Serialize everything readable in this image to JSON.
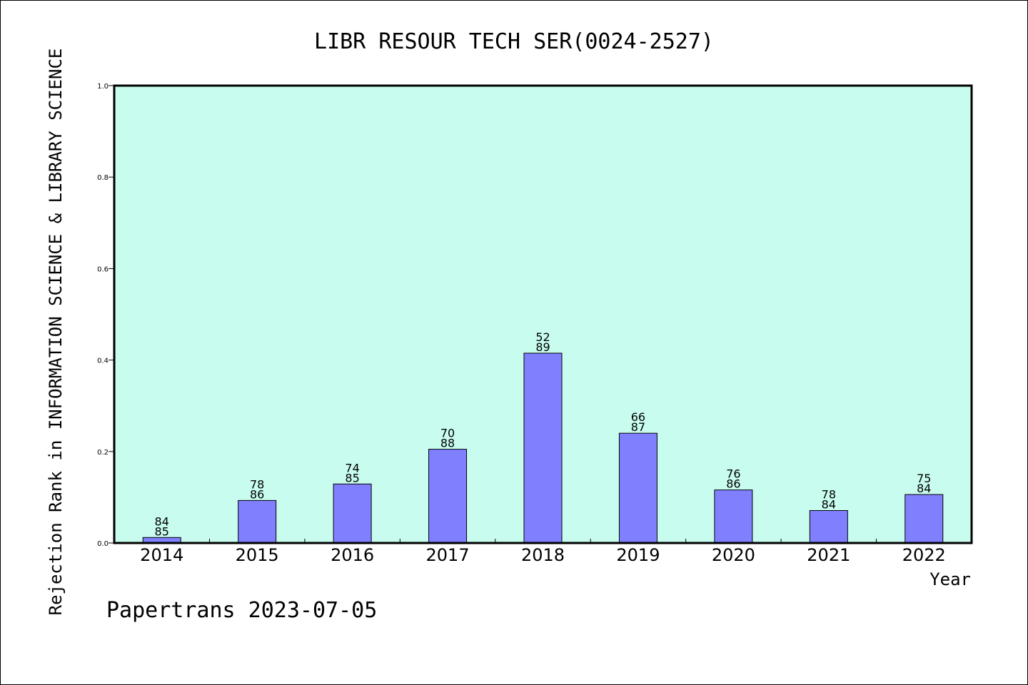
{
  "chart_data": {
    "type": "bar",
    "title": "LIBR RESOUR TECH SER(0024-2527)",
    "xlabel": "Year",
    "ylabel": "Rejection Rank in INFORMATION SCIENCE & LIBRARY SCIENCE",
    "ylim": [
      0.0,
      1.0
    ],
    "yticks": [
      "0.0",
      "0.2",
      "0.4",
      "0.6",
      "0.8",
      "1.0"
    ],
    "categories": [
      "2014",
      "2015",
      "2016",
      "2017",
      "2018",
      "2019",
      "2020",
      "2021",
      "2022"
    ],
    "values": [
      0.012,
      0.093,
      0.129,
      0.205,
      0.415,
      0.24,
      0.116,
      0.071,
      0.106
    ],
    "labels_top": [
      "84",
      "78",
      "74",
      "70",
      "52",
      "66",
      "76",
      "78",
      "75"
    ],
    "labels_bottom": [
      "85",
      "86",
      "85",
      "88",
      "89",
      "87",
      "86",
      "84",
      "84"
    ],
    "grid": false,
    "colors": {
      "plot_background": "#c8fcee",
      "bar_fill": "#8080ff",
      "bar_stroke": "#000000"
    }
  },
  "footer": {
    "watermark": "Papertrans 2023-07-05"
  }
}
